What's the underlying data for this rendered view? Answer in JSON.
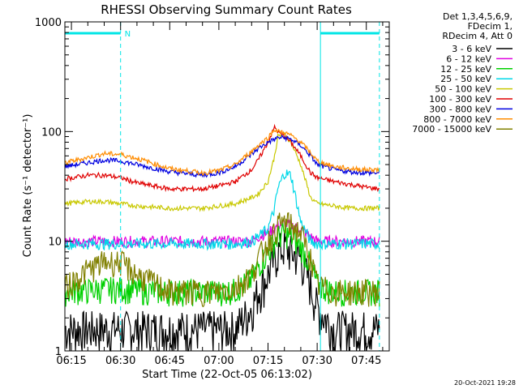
{
  "chart_data": {
    "type": "line",
    "title": "RHESSI Observing Summary Count Rates",
    "xlabel": "Start Time (22-Oct-05 06:13:02)",
    "ylabel": "Count Rate (s⁻¹ detector⁻¹)",
    "y_scale": "log",
    "ylim": [
      1,
      1000
    ],
    "xlim": [
      "06:13",
      "07:52"
    ],
    "x_tick_labels": [
      "06:15",
      "06:30",
      "06:45",
      "07:00",
      "07:15",
      "07:30",
      "07:45"
    ],
    "y_tick_labels": [
      "1",
      "10",
      "100",
      "1000"
    ],
    "grid": false,
    "legend_position": "right",
    "header_lines": [
      "Det 1,3,4,5,6,9,",
      "FDecim 1,",
      "RDecim 4, Att 0"
    ],
    "markers": {
      "night_bar_color": "#00e5e5",
      "night_markers": [
        {
          "from": "06:13",
          "to": "06:30",
          "label": "N"
        },
        {
          "from": "07:31",
          "to": "07:49",
          "label": ""
        }
      ],
      "solid_vertical_lines": [
        "06:13",
        "07:31"
      ],
      "dashed_vertical_lines": [
        "06:30",
        "07:49"
      ]
    },
    "x": [
      "06:13",
      "06:20",
      "06:25",
      "06:30",
      "06:35",
      "06:45",
      "06:55",
      "07:00",
      "07:05",
      "07:10",
      "07:12",
      "07:15",
      "07:17",
      "07:18",
      "07:20",
      "07:22",
      "07:25",
      "07:28",
      "07:30",
      "07:35",
      "07:40",
      "07:45",
      "07:49"
    ],
    "series": [
      {
        "name": "3 - 6 keV",
        "color": "#000000",
        "values": [
          1.6,
          1.6,
          1.6,
          1.6,
          1.6,
          1.6,
          1.6,
          1.6,
          1.6,
          2.5,
          3.5,
          5,
          7,
          8,
          9,
          8,
          7,
          4,
          2.5,
          1.6,
          1.6,
          1.6,
          1.6
        ]
      },
      {
        "name": "6 - 12 keV",
        "color": "#e000e0",
        "values": [
          10,
          10,
          10,
          10,
          10,
          10,
          10,
          10,
          10,
          10,
          11,
          12,
          13,
          14,
          14.5,
          14,
          13,
          11,
          10,
          10,
          10,
          10,
          10
        ]
      },
      {
        "name": "12 - 25 keV",
        "color": "#00d000",
        "values": [
          3.5,
          3.6,
          3.7,
          3.7,
          3.6,
          3.5,
          3.5,
          3.5,
          3.6,
          4.5,
          6,
          8,
          10,
          11,
          12,
          11,
          9,
          6,
          4,
          3.5,
          3.5,
          3.5,
          3.5
        ]
      },
      {
        "name": "25 - 50 keV",
        "color": "#00d8e8",
        "values": [
          9.5,
          9.5,
          9.5,
          9.5,
          9.5,
          9.5,
          9.5,
          9.5,
          9.5,
          10,
          11,
          13,
          20,
          30,
          42,
          40,
          15,
          10,
          9.5,
          9.5,
          9.5,
          9.5,
          9.5
        ]
      },
      {
        "name": "50 - 100 keV",
        "color": "#c8c800",
        "values": [
          22,
          23,
          23,
          22,
          21,
          20,
          20,
          21,
          22,
          25,
          27,
          35,
          60,
          90,
          95,
          80,
          50,
          25,
          22,
          21,
          20,
          20,
          20
        ]
      },
      {
        "name": "100 - 300 keV",
        "color": "#e00000",
        "values": [
          37,
          40,
          40,
          38,
          34,
          30,
          30,
          32,
          35,
          45,
          55,
          80,
          110,
          100,
          90,
          80,
          60,
          42,
          38,
          35,
          33,
          31,
          30
        ]
      },
      {
        "name": "300 - 800 keV",
        "color": "#0000e0",
        "values": [
          48,
          52,
          55,
          54,
          50,
          43,
          40,
          42,
          48,
          62,
          70,
          80,
          85,
          88,
          88,
          85,
          75,
          60,
          50,
          45,
          43,
          42,
          42
        ]
      },
      {
        "name": "800 - 7000 keV",
        "color": "#ff8c00",
        "values": [
          52,
          58,
          63,
          62,
          57,
          46,
          42,
          44,
          50,
          66,
          75,
          88,
          105,
          100,
          98,
          92,
          80,
          64,
          54,
          48,
          46,
          45,
          45
        ]
      },
      {
        "name": "7000 - 15000 keV",
        "color": "#808000",
        "values": [
          3.8,
          5.5,
          6.5,
          6.5,
          5,
          3.5,
          3.5,
          3.5,
          3.8,
          5,
          7,
          10,
          12,
          14,
          15,
          14,
          12,
          7,
          4,
          3.5,
          3.5,
          3.5,
          3.5
        ]
      }
    ]
  },
  "footer": {
    "timestamp": "20-Oct-2021 19:28"
  }
}
